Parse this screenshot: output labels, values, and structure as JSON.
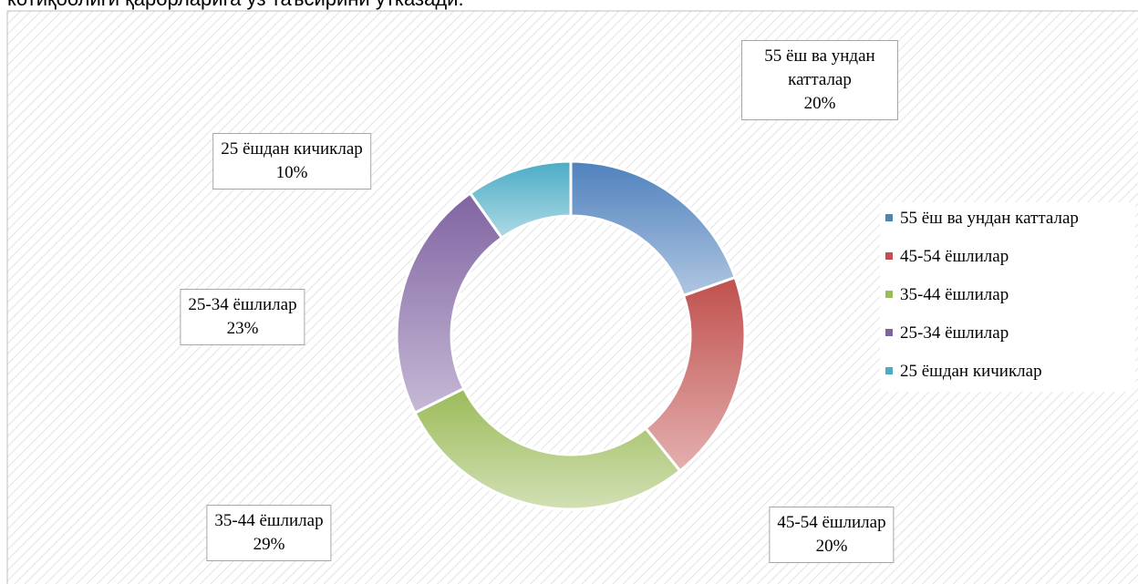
{
  "caption": "котиқоолиги қарорларига ўз таъсирини ўтказади.",
  "chart_data": {
    "type": "doughnut",
    "categories": [
      "55 ёш ва ундан катталар",
      "45-54 ёшлилар",
      "35-44 ёшлилар",
      "25-34 ёшлилар",
      "25 ёшдан кичиклар"
    ],
    "values": [
      20,
      20,
      29,
      23,
      10
    ],
    "value_labels": [
      "20%",
      "20%",
      "29%",
      "23%",
      "10%"
    ],
    "colors": [
      "#4f81bd",
      "#c0504d",
      "#9bbb59",
      "#8064a2",
      "#4bacc6"
    ],
    "legend": "right"
  }
}
